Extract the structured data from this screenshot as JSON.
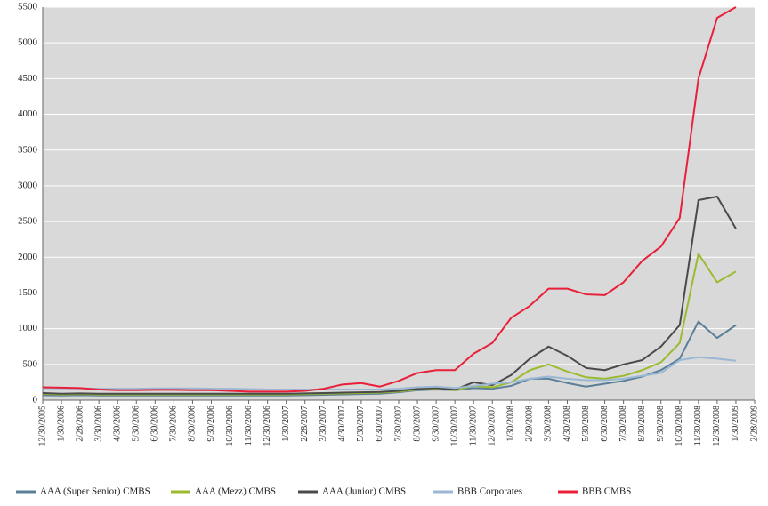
{
  "chart_data": {
    "type": "line",
    "categories": [
      "12/30/2005",
      "1/30/2006",
      "2/28/2006",
      "3/30/2006",
      "4/30/2006",
      "5/30/2006",
      "6/30/2006",
      "7/30/2006",
      "8/30/2006",
      "9/30/2006",
      "10/30/2006",
      "11/30/2006",
      "12/30/2006",
      "1/30/2007",
      "2/28/2007",
      "3/30/2007",
      "4/30/2007",
      "5/30/2007",
      "6/30/2007",
      "7/30/2007",
      "8/30/2007",
      "9/30/2007",
      "10/30/2007",
      "11/30/2007",
      "12/30/2007",
      "1/30/2008",
      "2/29/2008",
      "3/30/2008",
      "4/30/2008",
      "5/30/2008",
      "6/30/2008",
      "7/30/2008",
      "8/30/2008",
      "9/30/2008",
      "10/30/2008",
      "11/30/2008",
      "12/30/2008",
      "1/30/2009",
      "2/28/2009"
    ],
    "series": [
      {
        "name": "AAA (Super Senior) CMBS",
        "color": "#5b7f98",
        "values": [
          70,
          65,
          70,
          65,
          65,
          65,
          65,
          65,
          65,
          65,
          65,
          65,
          65,
          65,
          70,
          75,
          80,
          85,
          90,
          110,
          140,
          150,
          140,
          170,
          160,
          200,
          300,
          300,
          240,
          190,
          230,
          270,
          330,
          420,
          580,
          1100,
          870,
          1050,
          null
        ]
      },
      {
        "name": "AAA (Mezz) CMBS",
        "color": "#9bbb2f",
        "values": [
          90,
          80,
          85,
          80,
          80,
          80,
          80,
          80,
          80,
          80,
          80,
          80,
          80,
          80,
          85,
          90,
          95,
          100,
          105,
          120,
          150,
          160,
          140,
          200,
          180,
          250,
          420,
          500,
          400,
          320,
          300,
          340,
          420,
          530,
          800,
          2050,
          1650,
          1800,
          null
        ]
      },
      {
        "name": "AAA (Junior) CMBS",
        "color": "#4a4a4a",
        "values": [
          100,
          90,
          95,
          90,
          90,
          90,
          90,
          90,
          90,
          90,
          90,
          90,
          90,
          90,
          95,
          100,
          105,
          110,
          115,
          130,
          160,
          170,
          150,
          250,
          210,
          350,
          580,
          750,
          620,
          450,
          420,
          500,
          560,
          750,
          1050,
          2800,
          2850,
          2400,
          null
        ]
      },
      {
        "name": "BBB Corporates",
        "color": "#9ab8d4",
        "values": [
          170,
          165,
          165,
          160,
          160,
          160,
          165,
          165,
          165,
          160,
          160,
          155,
          150,
          150,
          150,
          150,
          150,
          150,
          150,
          160,
          180,
          190,
          170,
          200,
          230,
          250,
          300,
          330,
          300,
          280,
          280,
          300,
          340,
          380,
          560,
          600,
          580,
          550,
          null
        ]
      },
      {
        "name": "BBB CMBS",
        "color": "#e8203a",
        "values": [
          180,
          175,
          170,
          150,
          140,
          140,
          145,
          145,
          140,
          140,
          130,
          120,
          120,
          120,
          130,
          160,
          220,
          240,
          190,
          270,
          380,
          420,
          420,
          650,
          800,
          1150,
          1320,
          1560,
          1560,
          1480,
          1470,
          1650,
          1950,
          2150,
          2550,
          4500,
          5350,
          5500,
          null
        ]
      }
    ],
    "ylim": [
      0,
      5500
    ],
    "yticks": [
      0,
      500,
      1000,
      1500,
      2000,
      2500,
      3000,
      3500,
      4000,
      4500,
      5000,
      5500
    ],
    "grid": true
  }
}
